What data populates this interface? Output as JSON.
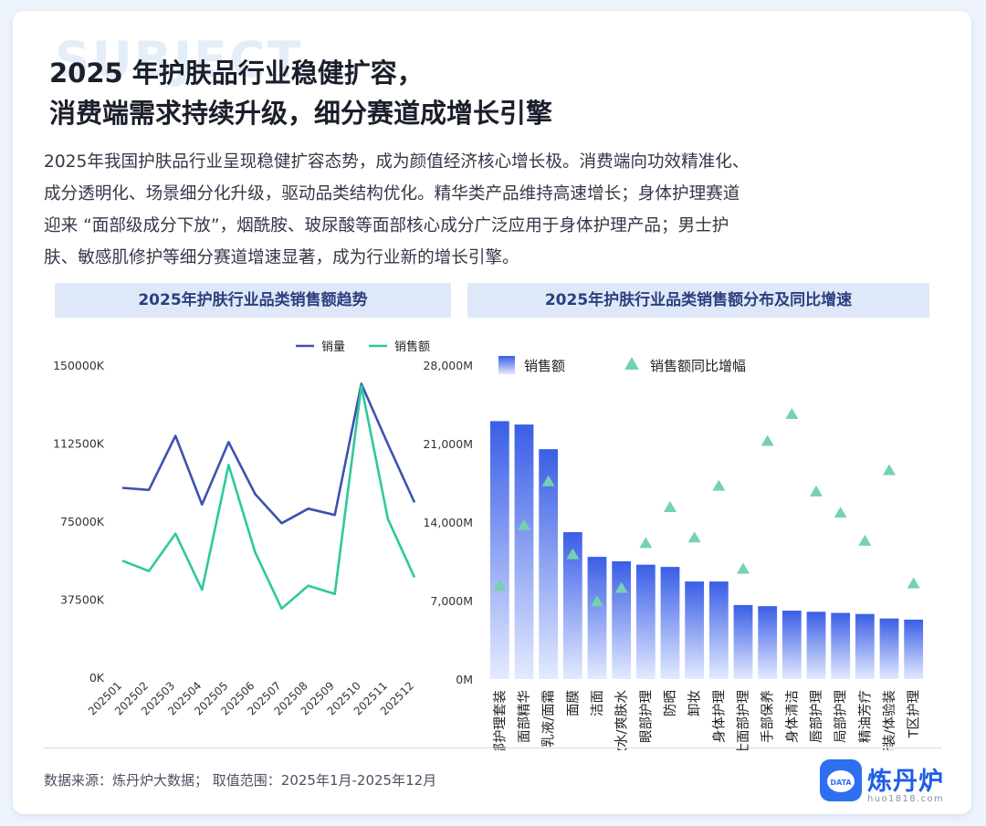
{
  "watermark": "SUBJECT",
  "title": {
    "line1": "2025 年护肤品行业稳健扩容，",
    "line2": "消费端需求持续升级，细分赛道成增长引擎"
  },
  "intro": {
    "line1": "2025年我国护肤品行业呈现稳健扩容态势，成为颜值经济核心增长极。消费端向功效精准化、",
    "line2": "成分透明化、场景细分化升级，驱动品类结构优化。精华类产品维持高速增长；身体护理赛道",
    "line3": "迎来 “面部级成分下放”，烟酰胺、玻尿酸等面部核心成分广泛应用于身体护理产品；男士护",
    "line4": "肤、敏感肌修护等细分赛道增速显著，成为行业新的增长引擎。"
  },
  "footer": {
    "source": "数据来源：炼丹炉大数据；  取值范围：2025年1月-2025年12月"
  },
  "logo": {
    "icon_text": "DATA",
    "brand": "炼丹炉",
    "url": "huo1818.com",
    "brand_color": "#1e5ee4"
  },
  "colors": {
    "line_volume": "#3d52b0",
    "line_sales": "#2fc89e",
    "bar_top": "#3a5ee6",
    "bar_bottom": "#e3eaff",
    "marker": "#74d2b0",
    "header_bg": "#dfe8f8"
  },
  "chart_data": [
    {
      "type": "line",
      "title": "2025年护肤行业品类销售额趋势",
      "x": [
        "202501",
        "202502",
        "202503",
        "202504",
        "202505",
        "202506",
        "202507",
        "202508",
        "202509",
        "202510",
        "202511",
        "202512"
      ],
      "yticks": [
        "0K",
        "37500K",
        "75000K",
        "112500K",
        "150000K"
      ],
      "ylim": [
        0,
        150000
      ],
      "unit": "K",
      "series": [
        {
          "name": "销量",
          "values": [
            91000,
            90000,
            116000,
            83000,
            113000,
            88000,
            74000,
            81000,
            78000,
            141000,
            112000,
            84000
          ]
        },
        {
          "name": "销售额",
          "values": [
            56000,
            51000,
            69000,
            42000,
            102000,
            60000,
            33000,
            44000,
            40000,
            140000,
            76000,
            48000
          ]
        }
      ],
      "legend": "top-right"
    },
    {
      "type": "bar",
      "title": "2025年护肤行业品类销售额分布及同比增速",
      "categories": [
        "面部护理套装",
        "面部精华",
        "乳液/面霜",
        "面膜",
        "洁面",
        "化妆水/爽肤水",
        "眼部护理",
        "防晒",
        "卸妆",
        "身体护理",
        "男士面部护理",
        "手部保养",
        "身体清洁",
        "唇部护理",
        "局部护理",
        "精油芳疗",
        "旅行装/体验装",
        "T区护理"
      ],
      "yticks": [
        "0M",
        "7,000M",
        "14,000M",
        "21,000M",
        "28,000M"
      ],
      "ylim": [
        0,
        28000
      ],
      "unit": "M",
      "series": [
        {
          "name": "销售额",
          "values": [
            23000,
            22700,
            20500,
            13100,
            10900,
            10500,
            10200,
            10000,
            8700,
            8700,
            6600,
            6500,
            6100,
            6000,
            5900,
            5800,
            5400,
            5300
          ]
        },
        {
          "name": "销售额同比增幅",
          "values": [
            8300,
            13700,
            17600,
            11100,
            6900,
            8100,
            12100,
            15300,
            12600,
            17200,
            9800,
            21200,
            23600,
            16700,
            14800,
            12300,
            18600,
            8500
          ]
        }
      ],
      "legend": "top-left"
    }
  ]
}
